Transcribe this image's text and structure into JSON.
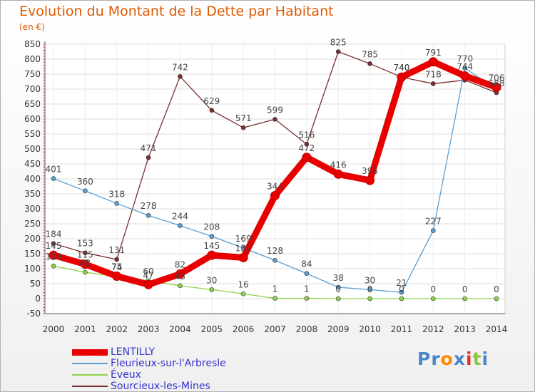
{
  "chart_data": {
    "type": "line",
    "title": "Evolution du Montant de la Dette par Habitant",
    "unit_label": "(en €)",
    "categories": [
      "2000",
      "2001",
      "2002",
      "2003",
      "2004",
      "2005",
      "2006",
      "2007",
      "2008",
      "2009",
      "2010",
      "2011",
      "2012",
      "2013",
      "2014"
    ],
    "ylim": [
      -50,
      850
    ],
    "yticks": [
      -50,
      0,
      50,
      100,
      150,
      200,
      250,
      300,
      350,
      400,
      450,
      500,
      550,
      600,
      650,
      700,
      750,
      800,
      850
    ],
    "grid": true,
    "legend_position": "bottom-left",
    "series": [
      {
        "name": "LENTILLY",
        "color": "#e80000",
        "width": 9,
        "marker": 6,
        "values": [
          145,
          115,
          75,
          47,
          82,
          145,
          137,
          344,
          472,
          416,
          395,
          740,
          791,
          744,
          706
        ],
        "labels": [
          "145",
          "115",
          "75",
          "47",
          "82",
          "145",
          "137",
          "344",
          "472",
          "416",
          "395",
          "740",
          "791",
          "744",
          "706"
        ]
      },
      {
        "name": "Fleurieux-sur-l'Arbresle",
        "color": "#5a9fd4",
        "width": 1.3,
        "marker": 3,
        "values": [
          401,
          360,
          318,
          278,
          244,
          208,
          169,
          128,
          84,
          38,
          30,
          21,
          227,
          770,
          700
        ],
        "labels": [
          "401",
          "360",
          "318",
          "278",
          "244",
          "208",
          "169",
          "128",
          "84",
          "38",
          "30",
          "21",
          "227",
          "770",
          ""
        ]
      },
      {
        "name": "Éveux",
        "color": "#8fd24a",
        "width": 1.3,
        "marker": 3,
        "values": [
          109,
          88,
          74,
          60,
          43,
          30,
          16,
          1,
          1,
          0,
          0,
          0,
          0,
          0,
          0
        ],
        "labels": [
          "109",
          "88",
          "74",
          "60",
          "43",
          "30",
          "16",
          "1",
          "1",
          "0",
          "0",
          "0",
          "0",
          "0",
          "0"
        ]
      },
      {
        "name": "Sourcieux-les-Mines",
        "color": "#7a2e2e",
        "width": 1.3,
        "marker": 3,
        "values": [
          184,
          153,
          131,
          471,
          742,
          629,
          571,
          599,
          516,
          825,
          785,
          740,
          718,
          730,
          688
        ],
        "labels": [
          "184",
          "153",
          "131",
          "471",
          "742",
          "629",
          "571",
          "599",
          "516",
          "825",
          "785",
          "740",
          "718",
          "",
          "688"
        ]
      }
    ]
  },
  "legend_labels": [
    "LENTILLY",
    "Fleurieux-sur-l'Arbresle",
    "Éveux",
    "Sourcieux-les-Mines"
  ],
  "logo": {
    "letters": [
      "P",
      "r",
      "o",
      "x",
      "i",
      "t",
      "i"
    ],
    "colors": [
      "#4a86c8",
      "#4a86c8",
      "#ff8a00",
      "#4a86c8",
      "#e03030",
      "#8cc63f",
      "#4a86c8"
    ]
  }
}
